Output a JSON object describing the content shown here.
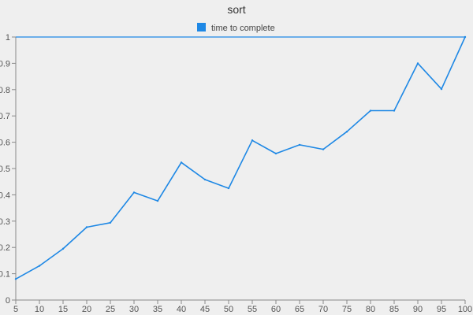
{
  "chart_data": {
    "type": "line",
    "title": "sort",
    "xlabel": "",
    "ylabel": "",
    "x": [
      5,
      10,
      15,
      20,
      25,
      30,
      35,
      40,
      45,
      50,
      55,
      60,
      65,
      70,
      75,
      80,
      85,
      90,
      95,
      100
    ],
    "xlim": [
      5,
      100
    ],
    "ylim": [
      0,
      1
    ],
    "yticks": [
      "0",
      "0.1",
      "0.2",
      "0.3",
      "0.4",
      "0.5",
      "0.6",
      "0.7",
      "0.8",
      "0.9",
      "1"
    ],
    "grid": false,
    "legend_position": "top-center",
    "series": [
      {
        "name": "time to complete",
        "color": "#1e88e5",
        "values": [
          0.08,
          0.13,
          0.195,
          0.277,
          0.294,
          0.409,
          0.377,
          0.523,
          0.458,
          0.425,
          0.607,
          0.557,
          0.59,
          0.573,
          0.64,
          0.72,
          0.72,
          0.9,
          0.802,
          1.0
        ]
      }
    ],
    "reference_line": {
      "y": 1,
      "color": "#1e88e5"
    }
  }
}
